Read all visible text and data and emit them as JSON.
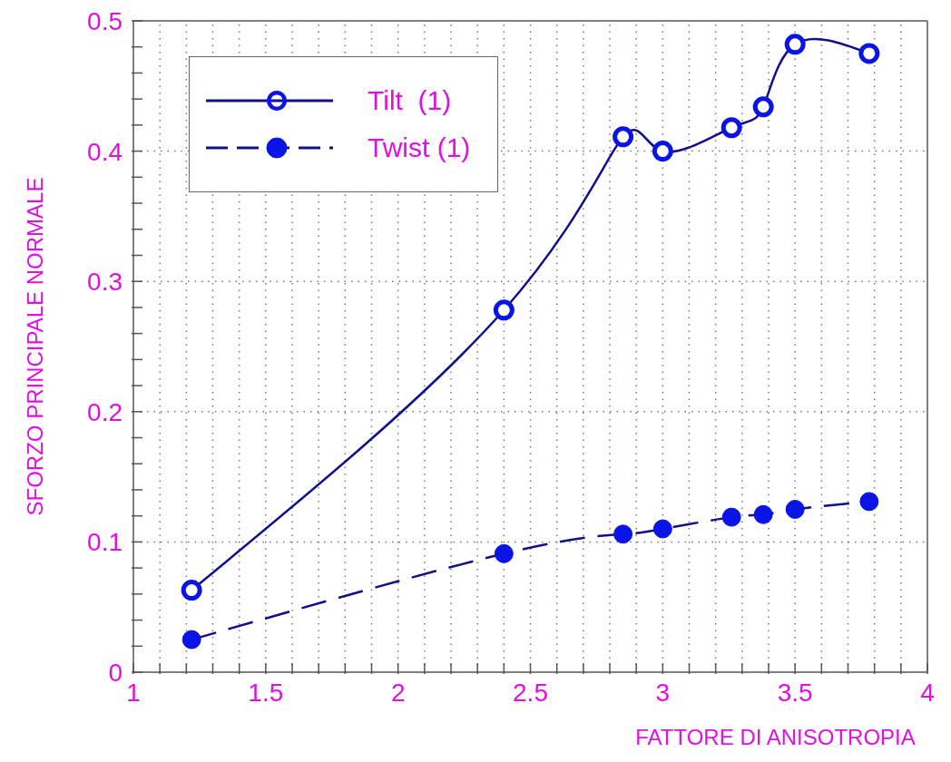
{
  "chart_data": {
    "type": "line",
    "xlabel": "FATTORE DI ANISOTROPIA",
    "ylabel": "SFORZO PRINCIPALE NORMALE",
    "x": [
      1.22,
      2.4,
      2.85,
      3.0,
      3.26,
      3.38,
      3.5,
      3.78
    ],
    "series": [
      {
        "name": "Tilt  (1)",
        "color": "#10108a",
        "line_style": "solid",
        "values": [
          0.063,
          0.278,
          0.411,
          0.4,
          0.418,
          0.434,
          0.482,
          0.475
        ]
      },
      {
        "name": "Twist (1)",
        "color": "#10108a",
        "line_style": "dashed",
        "values": [
          0.025,
          0.091,
          0.106,
          0.11,
          0.119,
          0.121,
          0.125,
          0.131
        ]
      }
    ],
    "xlim": [
      1,
      4
    ],
    "xticks": [
      1,
      {
        "value": 1.1,
        "label": null
      },
      {
        "value": 1.2,
        "label": null
      },
      {
        "value": 1.3,
        "label": null
      },
      {
        "value": 1.4,
        "label": null
      },
      1.5,
      {
        "value": 1.6,
        "label": null
      },
      {
        "value": 1.7,
        "label": null
      },
      {
        "value": 1.8,
        "label": null
      },
      {
        "value": 1.9,
        "label": null
      },
      2,
      {
        "value": 2.1,
        "label": null
      },
      {
        "value": 2.2,
        "label": null
      },
      {
        "value": 2.3,
        "label": null
      },
      {
        "value": 2.4,
        "label": null
      },
      2.5,
      {
        "value": 2.6,
        "label": null
      },
      {
        "value": 2.7,
        "label": null
      },
      {
        "value": 2.8,
        "label": null
      },
      {
        "value": 2.9,
        "label": null
      },
      3,
      {
        "value": 3.1,
        "label": null
      },
      {
        "value": 3.2,
        "label": null
      },
      {
        "value": 3.3,
        "label": null
      },
      {
        "value": 3.4,
        "label": null
      },
      3.5,
      {
        "value": 3.6,
        "label": null
      },
      {
        "value": 3.7,
        "label": null
      },
      {
        "value": 3.8,
        "label": null
      },
      {
        "value": 3.9,
        "label": null
      },
      4
    ],
    "ylim": [
      0,
      0.5
    ],
    "yticks": [
      0,
      {
        "value": 0.02,
        "label": null
      },
      {
        "value": 0.04,
        "label": null
      },
      {
        "value": 0.06,
        "label": null
      },
      {
        "value": 0.08,
        "label": null
      },
      0.1,
      {
        "value": 0.12,
        "label": null
      },
      {
        "value": 0.14,
        "label": null
      },
      {
        "value": 0.16,
        "label": null
      },
      {
        "value": 0.18,
        "label": null
      },
      0.2,
      {
        "value": 0.22,
        "label": null
      },
      {
        "value": 0.24,
        "label": null
      },
      {
        "value": 0.26,
        "label": null
      },
      {
        "value": 0.28,
        "label": null
      },
      0.3,
      {
        "value": 0.32,
        "label": null
      },
      {
        "value": 0.34,
        "label": null
      },
      {
        "value": 0.36,
        "label": null
      },
      {
        "value": 0.38,
        "label": null
      },
      0.4,
      {
        "value": 0.42,
        "label": null
      },
      {
        "value": 0.44,
        "label": null
      },
      {
        "value": 0.46,
        "label": null
      },
      {
        "value": 0.48,
        "label": null
      },
      0.5
    ],
    "grid": true,
    "legend": "top left",
    "marker": "circle"
  }
}
